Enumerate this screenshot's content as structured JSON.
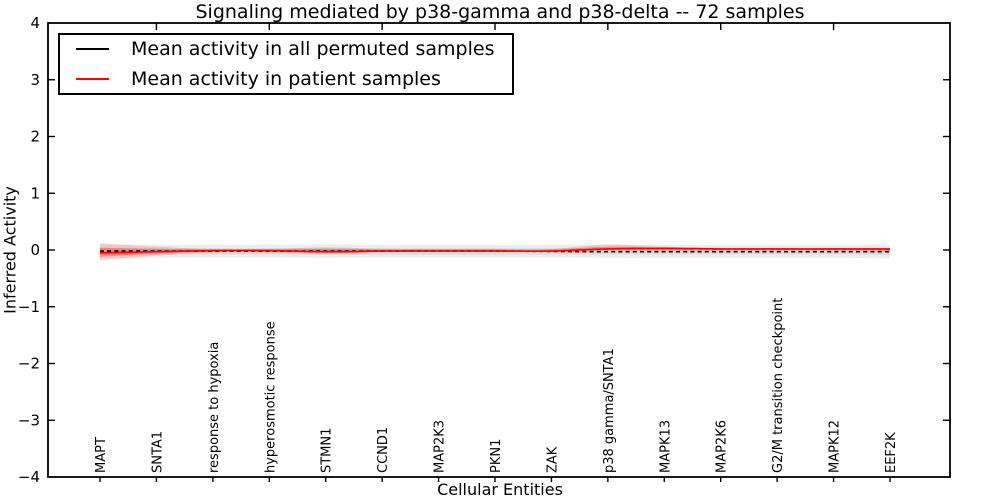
{
  "chart_data": {
    "type": "line",
    "title": "Signaling mediated by p38-gamma and p38-delta -- 72 samples",
    "xlabel": "Cellular Entities",
    "ylabel": "Inferred Activity",
    "ylim": [
      -4,
      4
    ],
    "yticks": [
      4,
      3,
      2,
      1,
      0,
      -1,
      -2,
      -3,
      -4
    ],
    "grid": false,
    "legend_position": "upper left",
    "categories": [
      "MAPT",
      "SNTA1",
      "response to hypoxia",
      "hyperosmotic response",
      "STMN1",
      "CCND1",
      "MAP2K3",
      "PKN1",
      "ZAK",
      "p38 gamma/SNTA1",
      "MAPK13",
      "MAP2K6",
      "G2/M transition checkpoint",
      "MAPK12",
      "EEF2K"
    ],
    "legend": [
      {
        "label": "Mean activity in all permuted samples",
        "color": "#000000"
      },
      {
        "label": "Mean activity in patient samples",
        "color": "#ff0000"
      }
    ],
    "series": [
      {
        "name": "Mean activity in all permuted samples",
        "color": "#000000",
        "style": "dashed",
        "values": [
          -0.02,
          -0.02,
          -0.02,
          -0.02,
          -0.02,
          -0.02,
          -0.02,
          -0.02,
          -0.025,
          -0.03,
          -0.03,
          -0.03,
          -0.03,
          -0.03,
          -0.03
        ]
      },
      {
        "name": "Mean activity in patient samples",
        "color": "#ff0000",
        "style": "solid",
        "values": [
          -0.05,
          -0.03,
          -0.01,
          -0.01,
          -0.03,
          -0.02,
          -0.02,
          -0.02,
          -0.02,
          0.02,
          0.03,
          0.02,
          0.02,
          0.02,
          0.02
        ]
      }
    ],
    "bands": [
      {
        "name": "permuted-band-outer",
        "color": "#999999",
        "opacity": 0.18,
        "upper": [
          0.1,
          0.09,
          0.09,
          0.09,
          0.1,
          0.09,
          0.09,
          0.09,
          0.09,
          0.09,
          0.09,
          0.09,
          0.09,
          0.09,
          0.1
        ],
        "lower": [
          -0.15,
          -0.14,
          -0.13,
          -0.13,
          -0.14,
          -0.13,
          -0.13,
          -0.13,
          -0.13,
          -0.14,
          -0.14,
          -0.14,
          -0.14,
          -0.14,
          -0.15
        ]
      },
      {
        "name": "permuted-band-inner",
        "color": "#999999",
        "opacity": 0.2,
        "upper": [
          0.04,
          0.04,
          0.03,
          0.03,
          0.04,
          0.03,
          0.03,
          0.03,
          0.03,
          0.03,
          0.03,
          0.03,
          0.03,
          0.03,
          0.04
        ],
        "lower": [
          -0.09,
          -0.08,
          -0.08,
          -0.08,
          -0.08,
          -0.08,
          -0.08,
          -0.08,
          -0.08,
          -0.08,
          -0.08,
          -0.08,
          -0.08,
          -0.08,
          -0.09
        ]
      },
      {
        "name": "patient-band-outer",
        "color": "#ff0000",
        "opacity": 0.15,
        "upper": [
          0.12,
          0.06,
          0.02,
          0.02,
          0.05,
          0.02,
          0.02,
          0.02,
          0.02,
          0.1,
          0.06,
          0.03,
          0.03,
          0.03,
          0.04
        ],
        "lower": [
          -0.18,
          -0.1,
          -0.04,
          -0.04,
          -0.07,
          -0.04,
          -0.03,
          -0.03,
          -0.03,
          -0.02,
          -0.02,
          -0.02,
          -0.02,
          -0.02,
          -0.03
        ]
      },
      {
        "name": "patient-band-inner",
        "color": "#ff0000",
        "opacity": 0.3,
        "upper": [
          0.04,
          0.02,
          0.01,
          0.01,
          0.02,
          0.01,
          0.01,
          0.01,
          0.01,
          0.06,
          0.04,
          0.02,
          0.02,
          0.02,
          0.03
        ],
        "lower": [
          -0.12,
          -0.06,
          -0.03,
          -0.03,
          -0.05,
          -0.03,
          -0.02,
          -0.02,
          -0.02,
          0.0,
          0.0,
          0.0,
          0.0,
          0.0,
          -0.01
        ]
      }
    ]
  }
}
